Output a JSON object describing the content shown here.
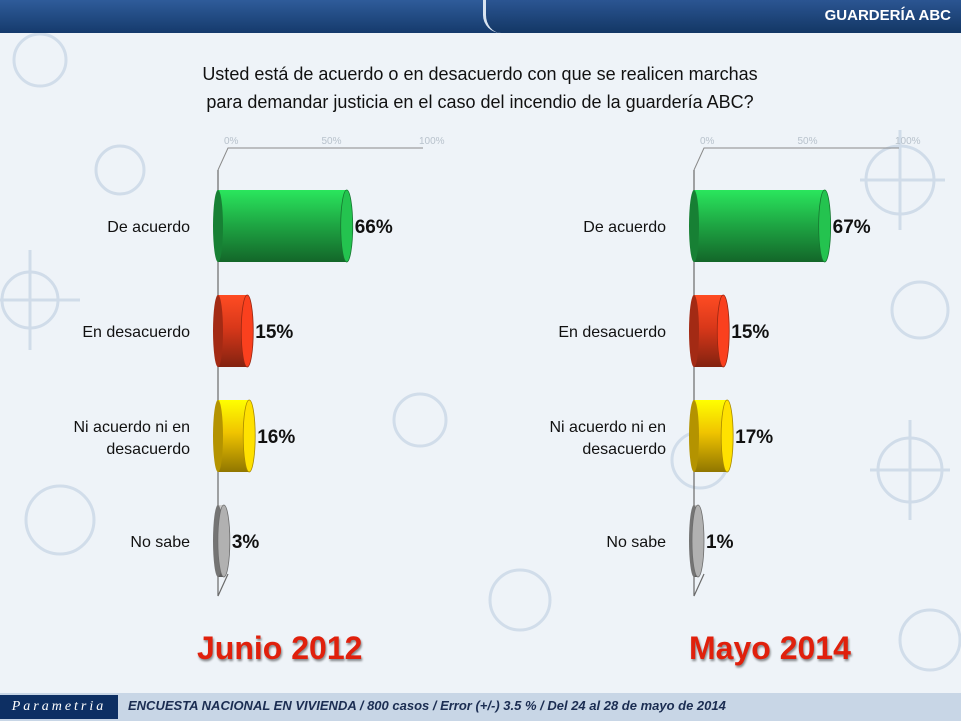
{
  "header": {
    "title": "GUARDERÍA ABC"
  },
  "question": {
    "line1": "Usted está de acuerdo o en desacuerdo con que se realicen marchas",
    "line2": "para demandar justicia en el caso del incendio de la guardería ABC?"
  },
  "watermark_text": "Parametria",
  "chart_data": [
    {
      "type": "bar",
      "orientation": "horizontal",
      "title": "Junio 2012",
      "categories": [
        "De acuerdo",
        "En desacuerdo",
        "Ni acuerdo ni en desacuerdo",
        "No sabe"
      ],
      "values": [
        66,
        15,
        16,
        3
      ],
      "labels": [
        "66%",
        "15%",
        "16%",
        "3%"
      ],
      "xlim": [
        0,
        100
      ],
      "ticks": [
        "0%",
        "50%",
        "100%"
      ],
      "colors": [
        "#1faa45",
        "#d9381a",
        "#f0c400",
        "#9a9a9a"
      ]
    },
    {
      "type": "bar",
      "orientation": "horizontal",
      "title": "Mayo 2014",
      "categories": [
        "De acuerdo",
        "En desacuerdo",
        "Ni acuerdo ni en desacuerdo",
        "No sabe"
      ],
      "values": [
        67,
        15,
        17,
        1
      ],
      "labels": [
        "67%",
        "15%",
        "17%",
        "1%"
      ],
      "xlim": [
        0,
        100
      ],
      "ticks": [
        "0%",
        "50%",
        "100%"
      ],
      "colors": [
        "#1faa45",
        "#d9381a",
        "#f0c400",
        "#9a9a9a"
      ]
    }
  ],
  "footer": {
    "logo": "Parametria",
    "text": "ENCUESTA NACIONAL EN VIVIENDA / 800 casos / Error (+/-) 3.5 % / Del 24 al 28 de mayo de 2014"
  }
}
